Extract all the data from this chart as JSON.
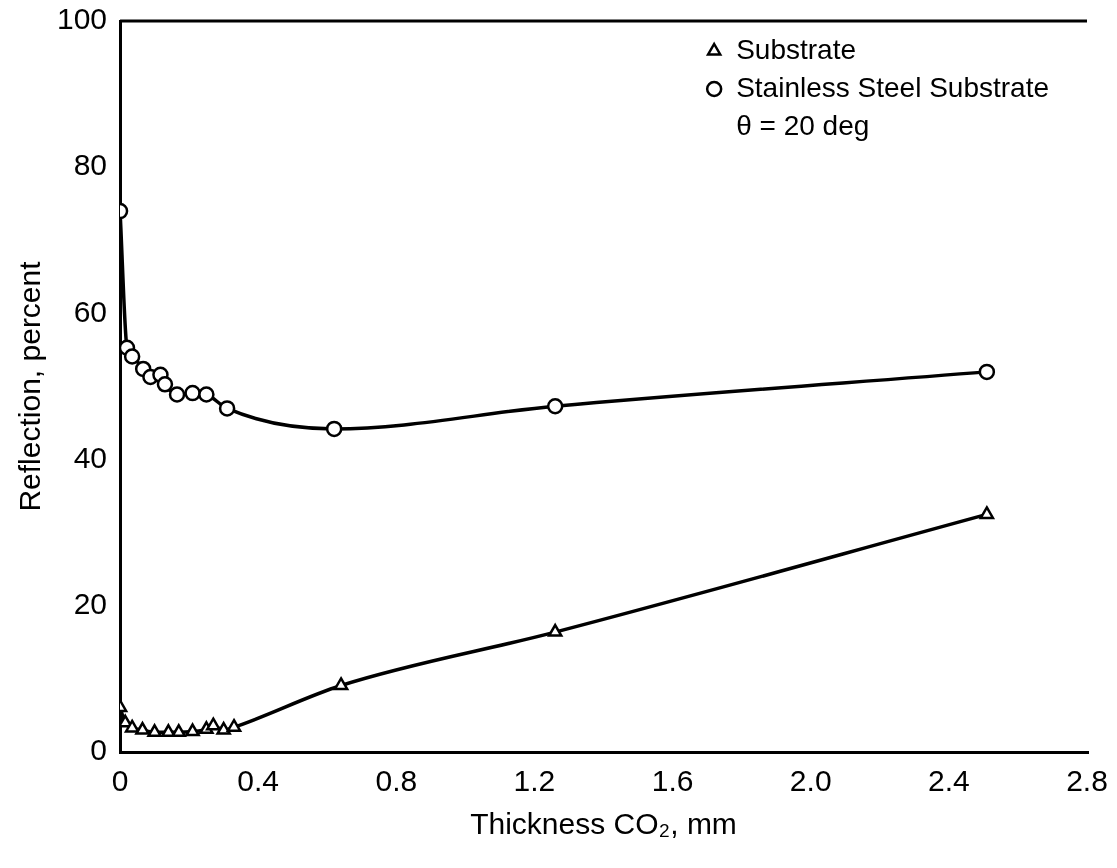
{
  "chart_data": {
    "type": "line",
    "xlabel": "Thickness CO₂, mm",
    "ylabel": "Reflection, percent",
    "xlim": [
      0,
      2.8
    ],
    "xticks": [
      0,
      0.4,
      0.8,
      1.2,
      1.6,
      {
        "value": 2,
        "label": "2.0"
      },
      2.4,
      2.8
    ],
    "ylim": [
      0,
      100
    ],
    "yticks": [
      0,
      20,
      40,
      60,
      80,
      100
    ],
    "grid": false,
    "legend": "top right",
    "line_style": "solid",
    "annotations": [
      "θ = 20 deg"
    ],
    "series": [
      {
        "name": "Substrate",
        "color": "#000000",
        "marker": "triangle",
        "x": [
          0,
          0.015,
          0.035,
          0.065,
          0.1,
          0.14,
          0.17,
          0.21,
          0.25,
          0.27,
          0.3,
          0.33,
          0.64,
          1.26,
          2.51
        ],
        "values": [
          6.1,
          4.0,
          3.3,
          3.0,
          2.7,
          2.7,
          2.7,
          2.8,
          3.1,
          3.6,
          3.0,
          3.4,
          9.1,
          16.4,
          32.5
        ]
      },
      {
        "name": "Stainless Steel Substrate",
        "color": "#000000",
        "marker": "circle",
        "x": [
          0,
          0.02,
          0.035,
          0.067,
          0.088,
          0.117,
          0.13,
          0.165,
          0.21,
          0.25,
          0.31,
          0.62,
          1.26,
          2.51
        ],
        "values": [
          74,
          55.3,
          54.1,
          52.4,
          51.3,
          51.6,
          50.3,
          48.9,
          49.1,
          48.9,
          47.0,
          44.2,
          47.3,
          52
        ]
      }
    ]
  }
}
